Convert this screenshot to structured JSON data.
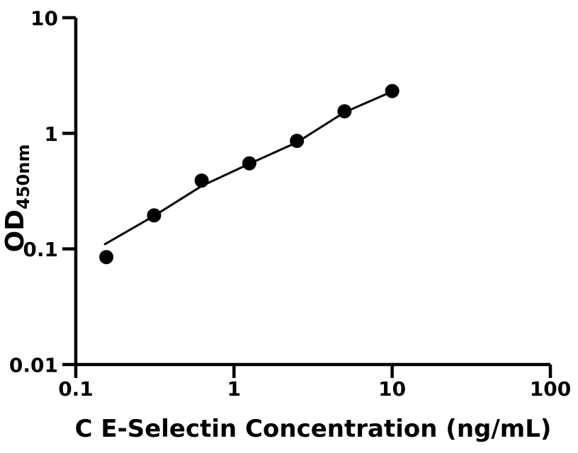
{
  "chart_data": {
    "type": "scatter",
    "xlabel": "C E-Selectin Concentration (ng/mL)",
    "ylabel_main": "OD",
    "ylabel_sub": "450nm",
    "x_scale": "log",
    "y_scale": "log",
    "xlim": [
      0.1,
      100
    ],
    "ylim": [
      0.01,
      10
    ],
    "grid": false,
    "legend_position": "none",
    "x_ticks": [
      {
        "value": 0.1,
        "label": "0.1"
      },
      {
        "value": 1,
        "label": "1"
      },
      {
        "value": 10,
        "label": "10"
      },
      {
        "value": 100,
        "label": "100"
      }
    ],
    "y_ticks": [
      {
        "value": 10,
        "label": "10"
      },
      {
        "value": 1,
        "label": "1"
      },
      {
        "value": 0.1,
        "label": "0.1"
      },
      {
        "value": 0.01,
        "label": "0.01"
      }
    ],
    "points": [
      {
        "conc": 0.156,
        "od": 0.085
      },
      {
        "conc": 0.3125,
        "od": 0.195
      },
      {
        "conc": 0.625,
        "od": 0.39
      },
      {
        "conc": 1.25,
        "od": 0.55
      },
      {
        "conc": 2.5,
        "od": 0.86
      },
      {
        "conc": 5,
        "od": 1.55
      },
      {
        "conc": 10,
        "od": 2.32
      }
    ],
    "fit_line": [
      {
        "conc": 0.153,
        "od": 0.11
      },
      {
        "conc": 0.3125,
        "od": 0.193
      },
      {
        "conc": 0.625,
        "od": 0.35
      },
      {
        "conc": 1.25,
        "od": 0.545
      },
      {
        "conc": 2.5,
        "od": 0.835
      },
      {
        "conc": 5,
        "od": 1.52
      },
      {
        "conc": 10,
        "od": 2.3
      }
    ],
    "marker": "filled-circle",
    "colors": {
      "marker": "#000000",
      "fit_line": "#000000",
      "axis": "#000000",
      "text": "#000000",
      "background": "#ffffff"
    }
  }
}
